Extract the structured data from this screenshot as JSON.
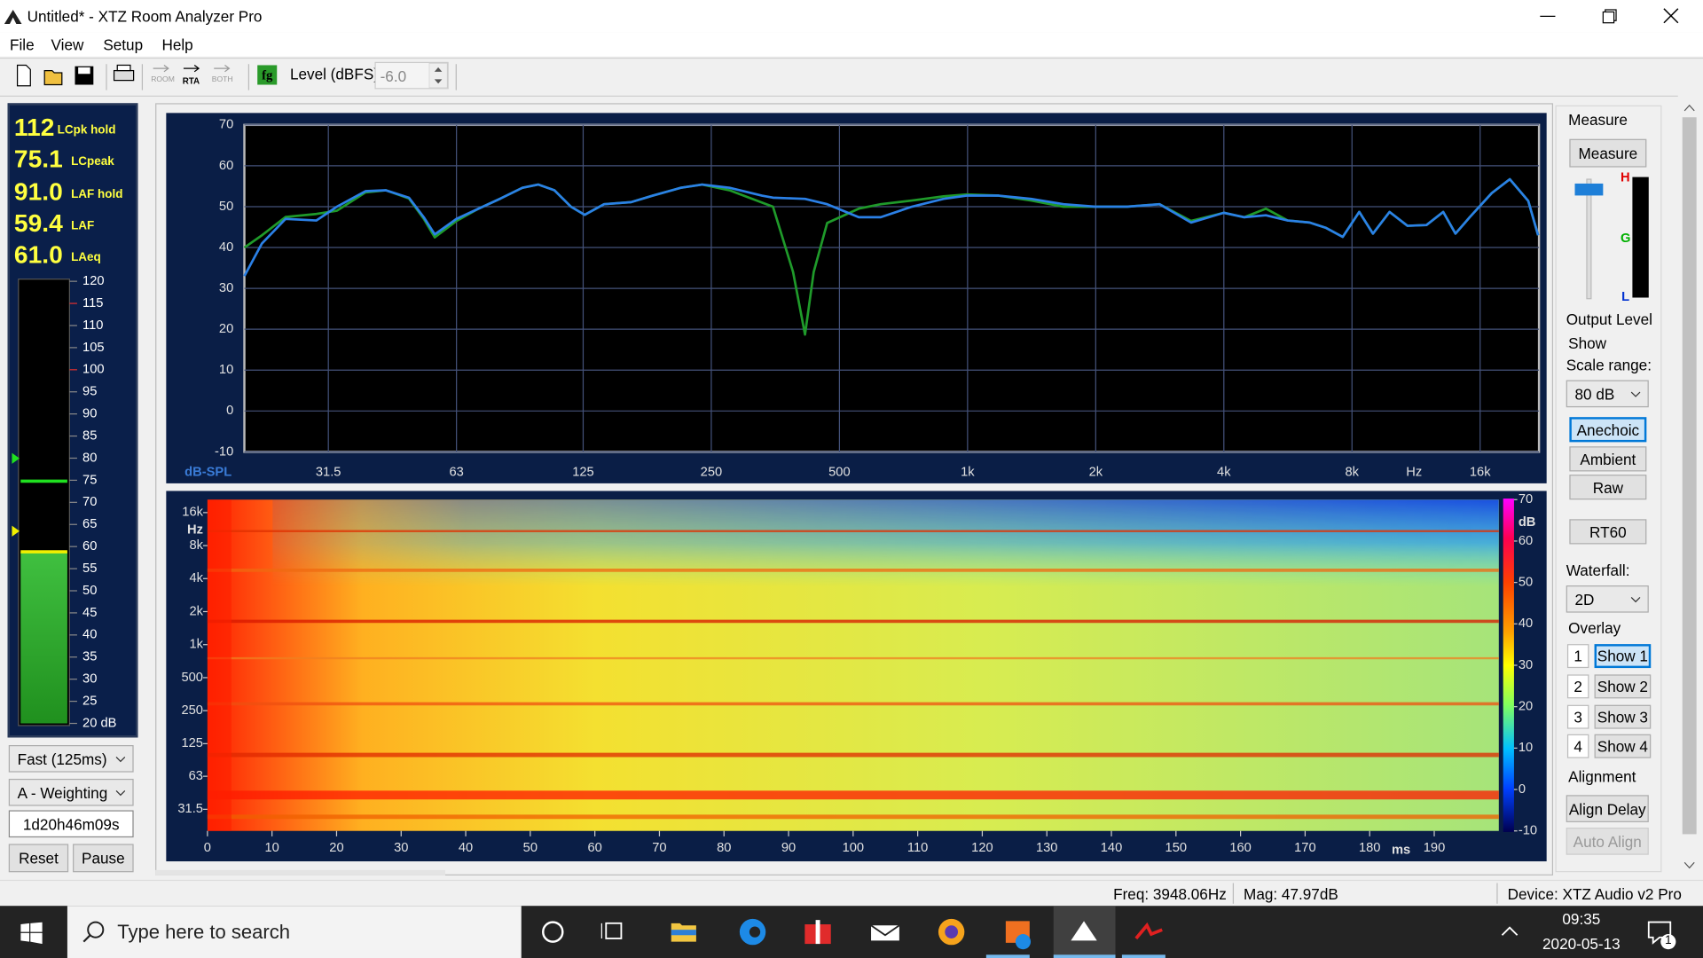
{
  "window": {
    "title": "Untitled* - XTZ Room Analyzer Pro"
  },
  "menu": [
    "File",
    "View",
    "Setup",
    "Help"
  ],
  "toolbar": {
    "buttons": [
      "ROOM",
      "RTA",
      "BOTH"
    ],
    "level_label": "Level (dBFS)",
    "level_value": "-6.0"
  },
  "meter": {
    "readings": [
      {
        "value": "112",
        "unit": "LCpk hold"
      },
      {
        "value": "75.1",
        "unit": "LCpeak"
      },
      {
        "value": "91.0",
        "unit": "LAF hold"
      },
      {
        "value": "59.4",
        "unit": "LAF"
      },
      {
        "value": "61.0",
        "unit": "LAeq"
      }
    ],
    "scale": [
      "120",
      "115",
      "110",
      "105",
      "100",
      "95",
      "90",
      "85",
      "80",
      "75",
      "70",
      "65",
      "60",
      "55",
      "50",
      "45",
      "40",
      "35",
      "30",
      "25",
      "20 dB"
    ]
  },
  "controls": {
    "response": "Fast (125ms)",
    "weighting": "A - Weighting",
    "elapsed": "1d20h46m09s",
    "reset": "Reset",
    "pause": "Pause"
  },
  "chart_data": [
    {
      "type": "line",
      "x_label": "Hz",
      "y_label": "dB-SPL",
      "xscale": "log",
      "grid": true,
      "x": [
        20,
        22,
        25,
        29.5,
        33,
        38.5,
        43,
        48.7,
        52.8,
        56,
        63,
        71,
        80,
        90,
        98,
        107,
        117,
        126,
        140,
        162,
        182,
        212,
        238,
        276,
        329,
        349,
        389,
        415,
        435,
        468,
        555,
        625,
        740,
        878,
        995,
        1183,
        1410,
        1680,
        1995,
        2370,
        2825,
        3350,
        4000,
        4470,
        5020,
        5650,
        6360,
        6950,
        7610,
        8320,
        8960,
        9800,
        10800,
        11970,
        13100,
        14000,
        15120,
        17040,
        18780,
        20760,
        21900
      ],
      "series": [
        {
          "color": "#1f9a2a",
          "values": [
            40,
            43,
            47.5,
            48.2,
            49,
            53.5,
            54,
            52,
            47,
            42.5,
            46.5,
            49.5,
            52,
            54.6,
            55.4,
            54,
            50,
            48,
            50.6,
            51.1,
            52.7,
            54.6,
            55.4,
            54,
            51,
            50,
            34,
            18.7,
            34,
            46,
            49.5,
            50.6,
            51.5,
            52.5,
            53,
            52.7,
            51.5,
            50,
            50,
            50,
            50.6,
            46.5,
            48.5,
            47.4,
            49.5,
            46.6,
            46.1,
            44.8,
            42.6,
            48.7,
            43.4,
            48.7,
            45.3,
            45.5,
            48.7,
            43.4,
            47.4,
            53.3,
            56.7,
            51.4,
            43
          ]
        },
        {
          "color": "#2b80e6",
          "values": [
            33,
            41,
            47,
            46.6,
            50,
            53.8,
            54,
            52.2,
            47.4,
            43.2,
            47,
            49.5,
            52,
            54.6,
            55.4,
            54,
            50,
            48,
            50.6,
            51.1,
            52.7,
            54.6,
            55.4,
            54.6,
            52.7,
            52.2,
            52,
            51.9,
            51.4,
            50.6,
            47.4,
            47.4,
            50,
            51.9,
            52.7,
            52.7,
            51.9,
            50.6,
            50,
            50,
            50.6,
            46.1,
            48.5,
            47.4,
            47.9,
            46.6,
            46.1,
            44.8,
            42.6,
            48.7,
            43.4,
            48.7,
            45.3,
            45.5,
            48.7,
            43.4,
            47.4,
            53.3,
            56.7,
            51.4,
            43
          ]
        }
      ],
      "xlim": [
        20,
        22000
      ],
      "xticks": [
        31.5,
        63,
        125,
        250,
        500,
        {
          "value": 1000,
          "label": "1k"
        },
        {
          "value": 2000,
          "label": "2k"
        },
        {
          "value": 4000,
          "label": "4k"
        },
        {
          "value": 8000,
          "label": "8k"
        },
        {
          "value": 16000,
          "label": "16k"
        }
      ],
      "ylim": [
        -10,
        70
      ],
      "yticks": [
        -10,
        0,
        10,
        20,
        30,
        40,
        50,
        60,
        70
      ]
    },
    {
      "type": "heatmap",
      "x_label": "ms",
      "y_label": "Hz",
      "colorbar_label": "dB",
      "yscale": "log",
      "xlim": [
        0,
        200
      ],
      "xticks": [
        0,
        10,
        20,
        30,
        40,
        50,
        60,
        70,
        80,
        90,
        100,
        110,
        120,
        130,
        140,
        150,
        160,
        170,
        180,
        190
      ],
      "ylim": [
        20,
        21000
      ],
      "yticks": [
        31.5,
        63,
        125,
        250,
        500,
        {
          "value": 1000,
          "label": "1k"
        },
        {
          "value": 2000,
          "label": "2k"
        },
        {
          "value": 4000,
          "label": "4k"
        },
        {
          "value": 8000,
          "label": "8k"
        },
        {
          "value": 16000,
          "label": "16k"
        }
      ],
      "clim": [
        -10,
        70
      ],
      "cticks": [
        -10,
        0,
        10,
        20,
        30,
        40,
        50,
        60,
        70
      ]
    }
  ],
  "side_panel": {
    "measure_group": "Measure",
    "measure_button": "Measure",
    "level_marks": [
      "H",
      "G",
      "L"
    ],
    "output_level": "Output Level",
    "show": "Show",
    "scale_range_label": "Scale range:",
    "scale_range": "80 dB",
    "modes": [
      "Anechoic",
      "Ambient",
      "Raw"
    ],
    "rt60": "RT60",
    "waterfall_label": "Waterfall:",
    "waterfall": "2D",
    "overlay_label": "Overlay",
    "overlays": [
      {
        "number": "1",
        "button": "Show 1"
      },
      {
        "number": "2",
        "button": "Show 2"
      },
      {
        "number": "3",
        "button": "Show 3"
      },
      {
        "number": "4",
        "button": "Show 4"
      }
    ],
    "alignment_label": "Alignment",
    "align_delay": "Align Delay",
    "auto_align": "Auto Align"
  },
  "status_bar": {
    "freq": "Freq: 3948.06Hz",
    "mag": "Mag: 47.97dB",
    "device": "Device: XTZ Audio v2 Pro"
  },
  "taskbar": {
    "search": "Type here to search",
    "time": "09:35",
    "date": "2020-05-13",
    "badge": "1"
  }
}
